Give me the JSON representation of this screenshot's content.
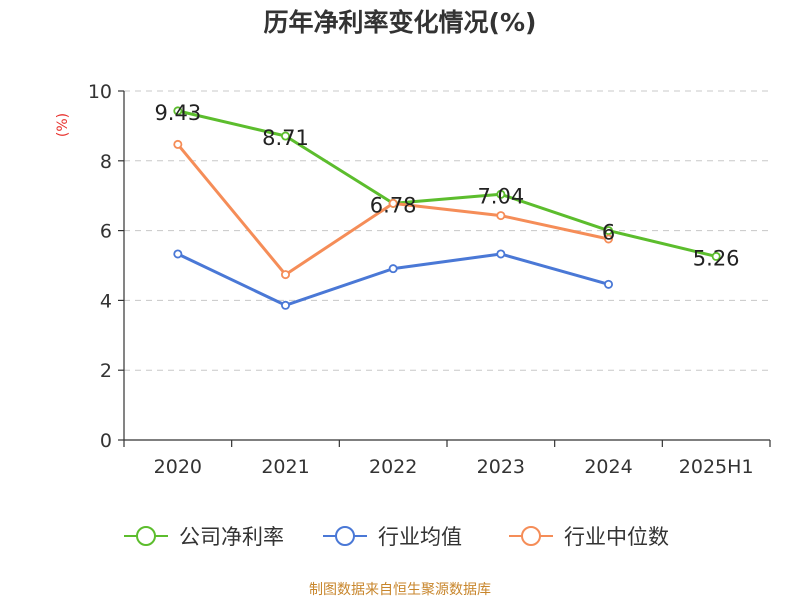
{
  "chart_data": {
    "type": "line",
    "title": "历年净利率变化情况(%)",
    "ylabel": "(%)",
    "xlabel": "",
    "categories": [
      "2020",
      "2021",
      "2022",
      "2023",
      "2024",
      "2025H1"
    ],
    "ylim": [
      0,
      10
    ],
    "yticks": [
      0,
      2,
      4,
      6,
      8,
      10
    ],
    "grid": true,
    "legend_position": "bottom",
    "series": [
      {
        "name": "公司净利率",
        "color": "#5cbd2d",
        "values": [
          9.43,
          8.71,
          6.78,
          7.04,
          6,
          5.26
        ],
        "labels": [
          "9.43",
          "8.71",
          "6.78",
          "7.04",
          "6",
          "5.26"
        ]
      },
      {
        "name": "行业均值",
        "color": "#4a78d6",
        "values": [
          5.33,
          3.86,
          4.91,
          5.33,
          4.46,
          null
        ]
      },
      {
        "name": "行业中位数",
        "color": "#f58d58",
        "values": [
          8.47,
          4.74,
          6.78,
          6.43,
          5.76,
          null
        ]
      }
    ]
  },
  "source_text": "制图数据来自恒生聚源数据库"
}
